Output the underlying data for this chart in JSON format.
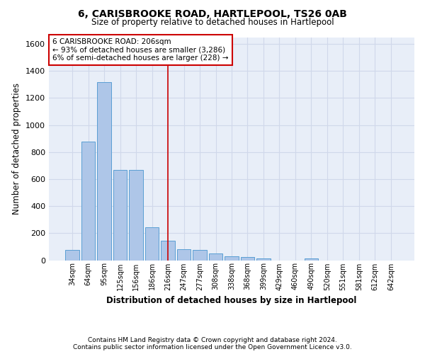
{
  "title": "6, CARISBROOKE ROAD, HARTLEPOOL, TS26 0AB",
  "subtitle": "Size of property relative to detached houses in Hartlepool",
  "xlabel": "Distribution of detached houses by size in Hartlepool",
  "ylabel": "Number of detached properties",
  "categories": [
    "34sqm",
    "64sqm",
    "95sqm",
    "125sqm",
    "156sqm",
    "186sqm",
    "216sqm",
    "247sqm",
    "277sqm",
    "308sqm",
    "338sqm",
    "368sqm",
    "399sqm",
    "429sqm",
    "460sqm",
    "490sqm",
    "520sqm",
    "551sqm",
    "581sqm",
    "612sqm",
    "642sqm"
  ],
  "values": [
    75,
    880,
    1315,
    670,
    670,
    245,
    145,
    80,
    75,
    50,
    30,
    25,
    15,
    0,
    0,
    15,
    0,
    0,
    0,
    0,
    0
  ],
  "bar_color": "#aec6e8",
  "bar_edge_color": "#5a9fd4",
  "vline_x": 6,
  "vline_color": "#cc0000",
  "annotation_text": "6 CARISBROOKE ROAD: 206sqm\n← 93% of detached houses are smaller (3,286)\n6% of semi-detached houses are larger (228) →",
  "annotation_box_color": "#cc0000",
  "ylim": [
    0,
    1650
  ],
  "yticks": [
    0,
    200,
    400,
    600,
    800,
    1000,
    1200,
    1400,
    1600
  ],
  "grid_color": "#d0d8ea",
  "background_color": "#e8eef8",
  "footer_line1": "Contains HM Land Registry data © Crown copyright and database right 2024.",
  "footer_line2": "Contains public sector information licensed under the Open Government Licence v3.0."
}
